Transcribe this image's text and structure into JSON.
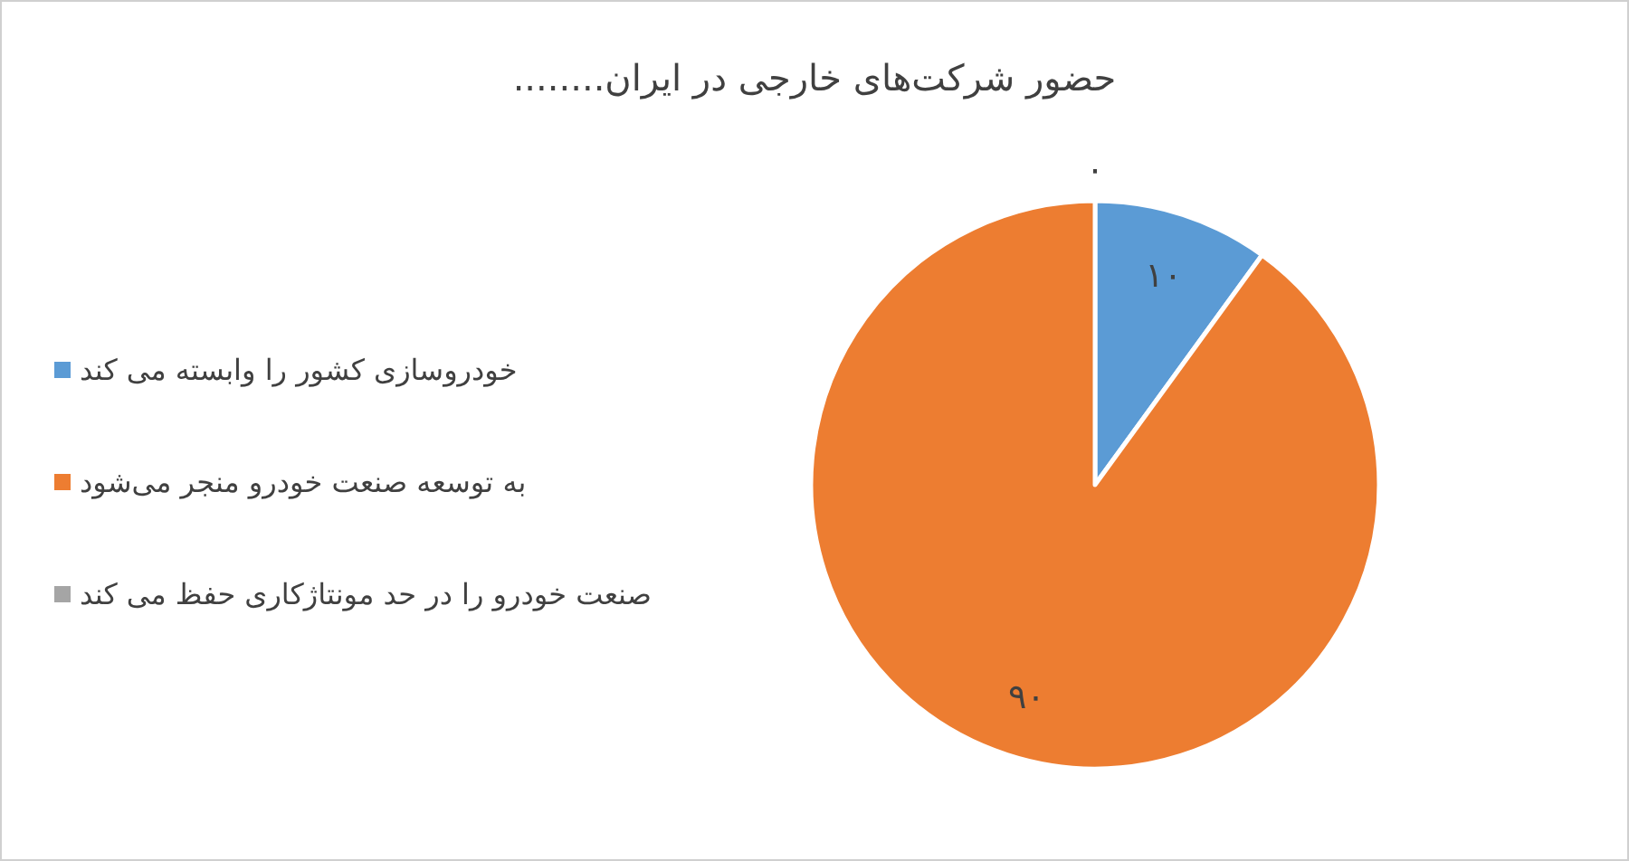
{
  "chart_data": {
    "type": "pie",
    "title": "حضور شرکت‌های خارجی در ایران........",
    "categories": [
      "خودروسازی کشور را وابسته می کند",
      "به توسعه صنعت خودرو منجر می‌شود",
      "صنعت خودرو را در حد مونتاژکاری حفظ می کند"
    ],
    "values": [
      10,
      90,
      0
    ],
    "colors": [
      "#5b9bd5",
      "#ed7d31",
      "#a5a5a5"
    ],
    "value_labels": [
      "۱۰",
      "۹۰",
      "۰"
    ],
    "legend": "left"
  }
}
